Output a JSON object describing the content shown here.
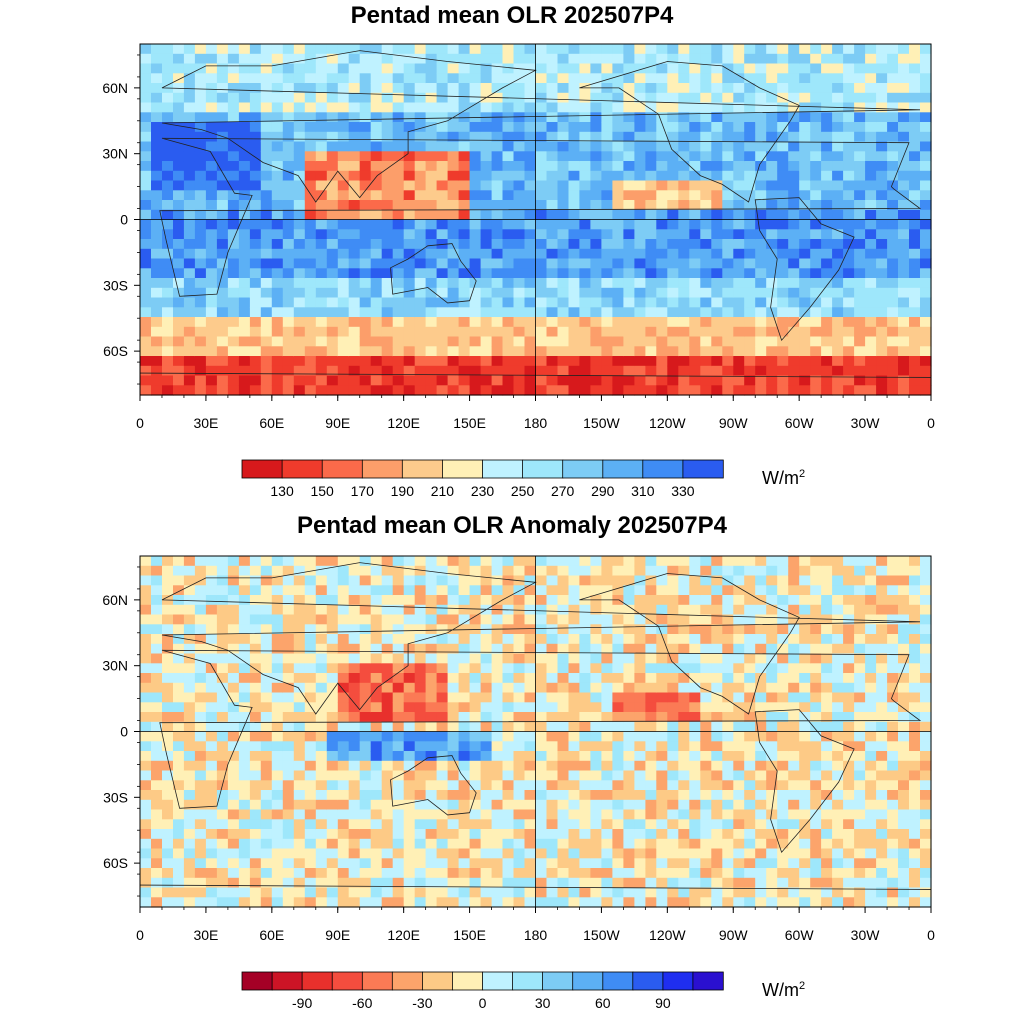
{
  "panels": [
    {
      "title": "Pentad mean OLR 202507P4",
      "unit_base": "W/m",
      "unit_exp": "2",
      "colorbar": {
        "colors": [
          "#d7191c",
          "#ef3b2c",
          "#fb6a4a",
          "#fc9e6a",
          "#fdcb8c",
          "#fff0b6",
          "#bff2ff",
          "#9ee7fb",
          "#7dccf5",
          "#5cb0f5",
          "#3f8cf5",
          "#2a5cf0"
        ],
        "labels": [
          "130",
          "150",
          "170",
          "190",
          "210",
          "230",
          "250",
          "270",
          "290",
          "310",
          "330"
        ]
      }
    },
    {
      "title": "Pentad mean OLR Anomaly 202507P4",
      "unit_base": "W/m",
      "unit_exp": "2",
      "colorbar": {
        "colors": [
          "#a50026",
          "#cc1426",
          "#e8302c",
          "#f44d3e",
          "#fb7a55",
          "#fca46b",
          "#fdca86",
          "#fff0b6",
          "#bff2ff",
          "#9ee7fb",
          "#7dccf5",
          "#5cb0f5",
          "#3f8cf5",
          "#2a5cf0",
          "#1f2ef0",
          "#2a10d0"
        ],
        "labels": [
          "-90",
          "-60",
          "-30",
          "0",
          "30",
          "60",
          "90"
        ]
      }
    }
  ],
  "x_ticks": [
    "0",
    "30E",
    "60E",
    "90E",
    "120E",
    "150E",
    "180",
    "150W",
    "120W",
    "90W",
    "60W",
    "30W",
    "0"
  ],
  "y_ticks": [
    "60N",
    "30N",
    "0",
    "30S",
    "60S"
  ]
}
